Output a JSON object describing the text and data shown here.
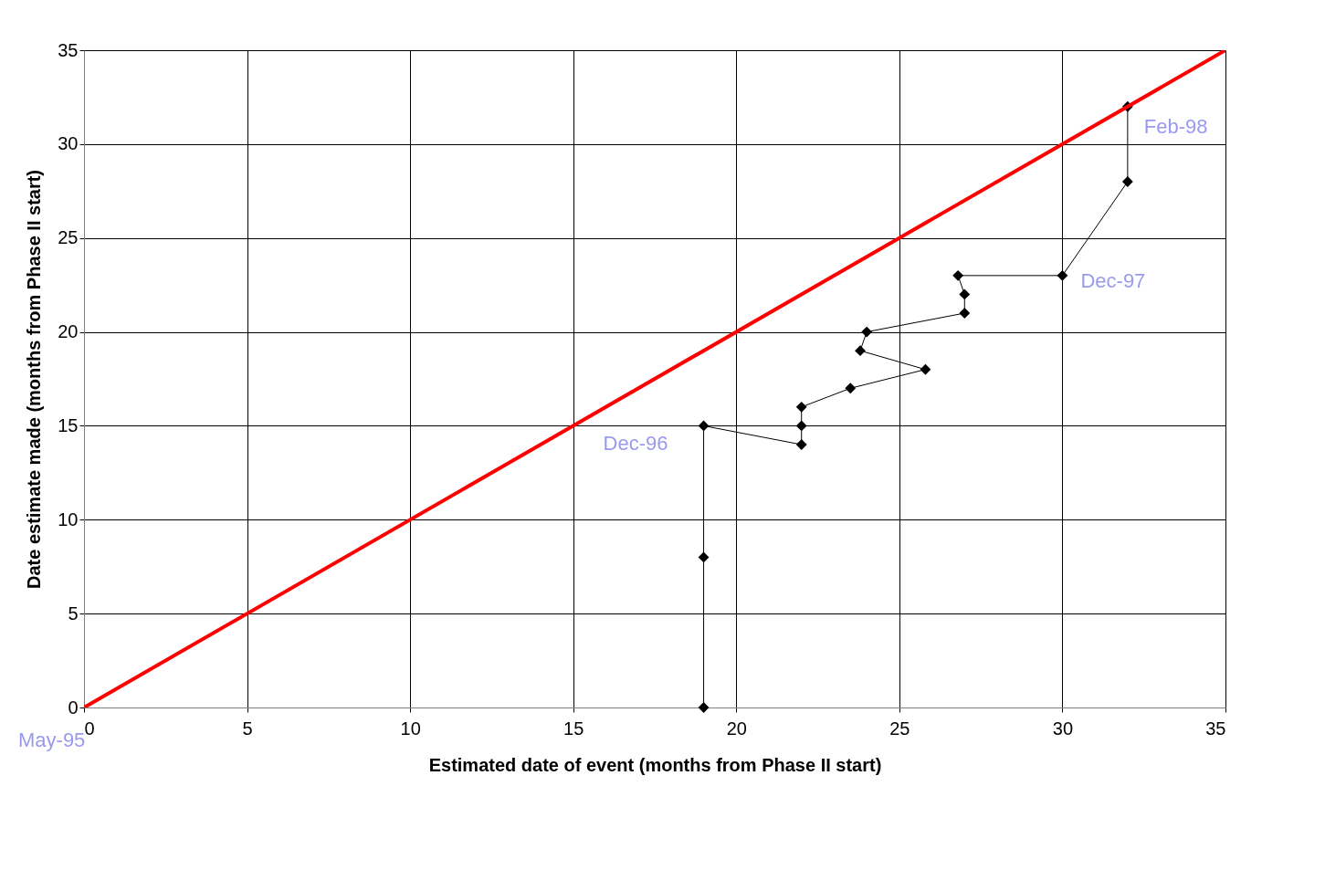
{
  "chart_data": {
    "type": "line",
    "xlabel": "Estimated date of event (months from Phase II start)",
    "ylabel": "Date estimate made (months from Phase II start)",
    "series": [
      {
        "color": "#000000",
        "marker": "diamond",
        "x": [
          19,
          19,
          19,
          22,
          22,
          22,
          23.5,
          25.8,
          23.8,
          24,
          27,
          27,
          26.8,
          30,
          32,
          32
        ],
        "values": [
          0,
          8,
          15,
          14,
          15,
          16,
          17,
          18,
          19,
          20,
          21,
          22,
          23,
          23,
          28,
          32
        ]
      },
      {
        "color": "#ff0000",
        "marker": "none",
        "x": [
          0,
          35
        ],
        "values": [
          0,
          35
        ]
      }
    ],
    "annotations": [
      {
        "text": "May-95",
        "x": 0,
        "y": 0
      },
      {
        "text": "Dec-96",
        "x": 19,
        "y": 15
      },
      {
        "text": "Dec-97",
        "x": 30,
        "y": 23
      },
      {
        "text": "Feb-98",
        "x": 32,
        "y": 32
      }
    ],
    "xlim": [
      0,
      35
    ],
    "xticks": [
      0,
      5,
      10,
      15,
      20,
      25,
      30,
      35
    ],
    "ylim": [
      0,
      35
    ],
    "yticks": [
      0,
      5,
      10,
      15,
      20,
      25,
      30,
      35
    ],
    "grid": true
  }
}
